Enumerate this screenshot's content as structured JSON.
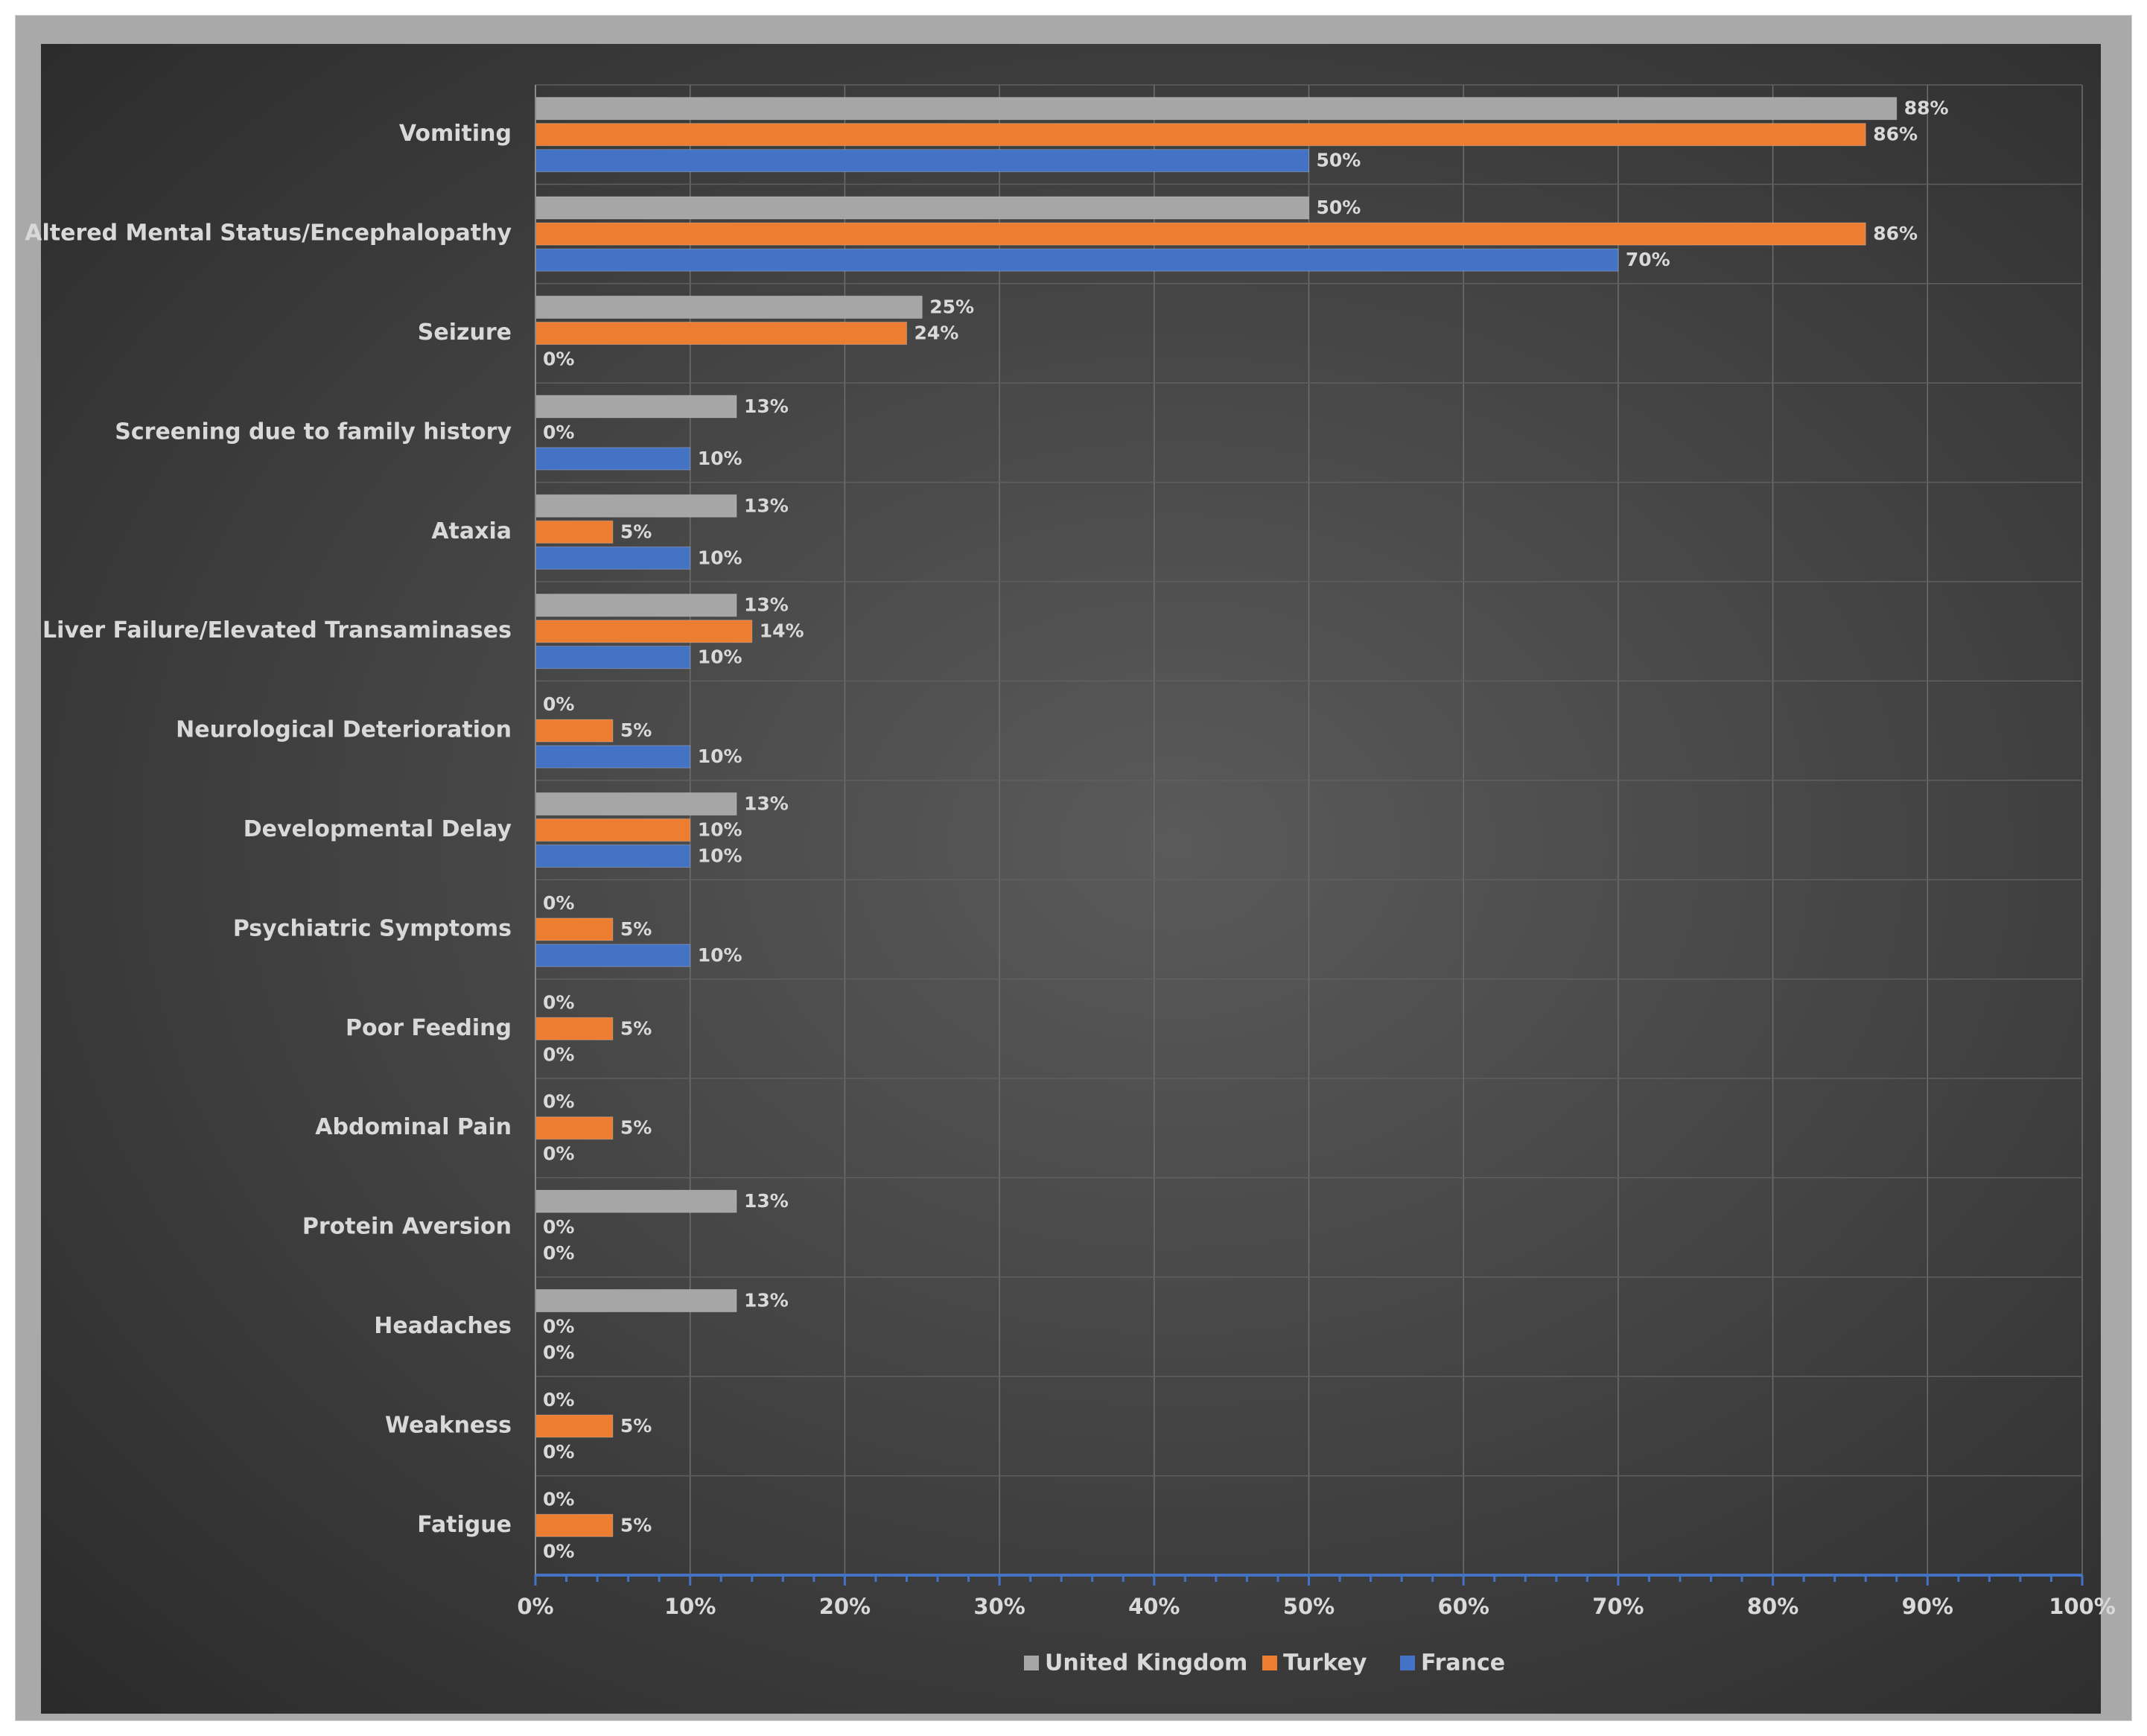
{
  "chart_data": {
    "type": "bar",
    "orientation": "horizontal",
    "title": "",
    "xlabel": "",
    "ylabel": "",
    "xlim": [
      0,
      100
    ],
    "value_unit": "%",
    "grid": true,
    "legend_position": "bottom",
    "ticks": [
      "0%",
      "10%",
      "20%",
      "30%",
      "40%",
      "50%",
      "60%",
      "70%",
      "80%",
      "90%",
      "100%"
    ],
    "tick_values": [
      0,
      10,
      20,
      30,
      40,
      50,
      60,
      70,
      80,
      90,
      100
    ],
    "categories": [
      "Vomiting",
      "Altered Mental Status/Encephalopathy",
      "Seizure",
      "Screening due to family history",
      "Ataxia",
      "Liver Failure/Elevated Transaminases",
      "Neurological Deterioration",
      "Developmental Delay",
      "Psychiatric Symptoms",
      "Poor Feeding",
      "Abdominal Pain",
      "Protein Aversion",
      "Headaches",
      "Weakness",
      "Fatigue"
    ],
    "series": [
      {
        "name": "United Kingdom",
        "color": "#a6a6a6",
        "values": [
          88,
          50,
          25,
          13,
          13,
          13,
          0,
          13,
          0,
          0,
          0,
          13,
          13,
          0,
          0
        ],
        "labels": [
          "88%",
          "50%",
          "25%",
          "13%",
          "13%",
          "13%",
          "0%",
          "13%",
          "0%",
          "0%",
          "0%",
          "13%",
          "13%",
          "0%",
          "0%"
        ]
      },
      {
        "name": "Turkey",
        "color": "#ed7d31",
        "values": [
          86,
          86,
          24,
          0,
          5,
          14,
          5,
          10,
          5,
          5,
          5,
          0,
          0,
          5,
          5
        ],
        "labels": [
          "86%",
          "86%",
          "24%",
          "0%",
          "5%",
          "14%",
          "5%",
          "10%",
          "5%",
          "5%",
          "5%",
          "0%",
          "0%",
          "5%",
          "5%"
        ]
      },
      {
        "name": "France",
        "color": "#4472c4",
        "values": [
          50,
          70,
          0,
          10,
          10,
          10,
          10,
          10,
          10,
          0,
          0,
          0,
          0,
          0,
          0
        ],
        "labels": [
          "50%",
          "70%",
          "0%",
          "10%",
          "10%",
          "10%",
          "10%",
          "10%",
          "10%",
          "0%",
          "0%",
          "0%",
          "0%",
          "0%",
          "0%"
        ]
      }
    ]
  }
}
